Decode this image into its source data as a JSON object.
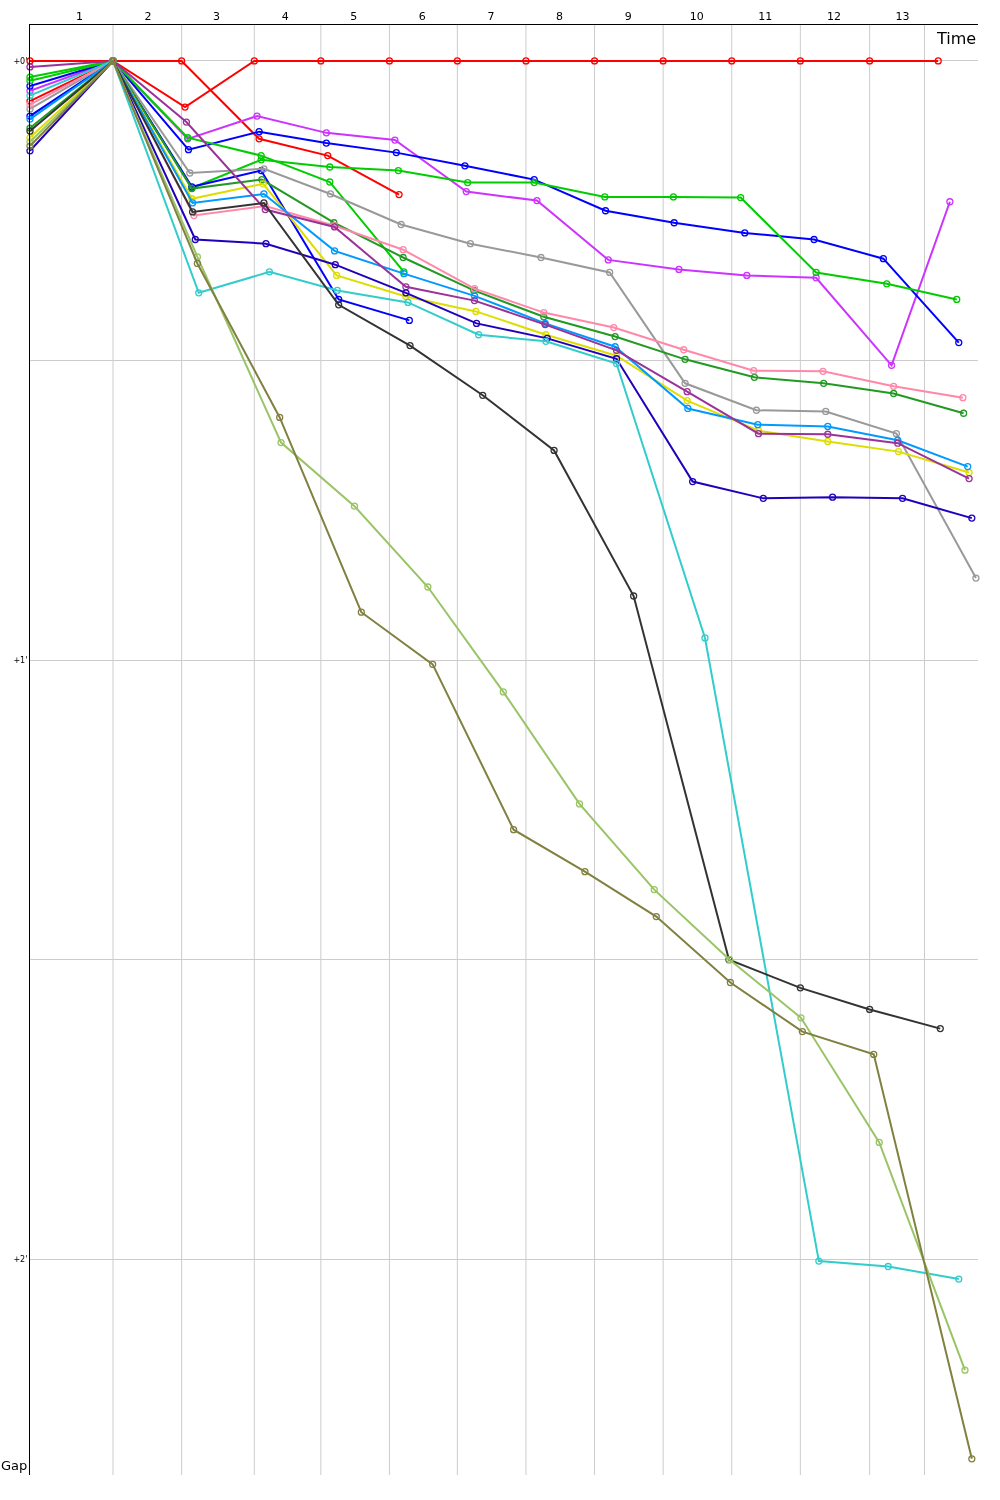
{
  "chart_data": {
    "type": "line",
    "xlabel": "Time",
    "ylabel": "Gap",
    "xlim": [
      0.28,
      14.1
    ],
    "ylim": [
      2.36,
      -0.06
    ],
    "xticks": [
      1,
      {
        "value": 1.49,
        "label": null
      },
      2,
      {
        "value": 2.49,
        "label": null
      },
      3,
      {
        "value": 3.55,
        "label": null
      },
      4,
      {
        "value": 4.52,
        "label": null
      },
      5,
      {
        "value": 5.52,
        "label": null
      },
      6,
      {
        "value": 6.51,
        "label": null
      },
      7,
      {
        "value": 7.51,
        "label": null
      },
      8,
      {
        "value": 8.51,
        "label": null
      },
      9,
      {
        "value": 9.51,
        "label": null
      },
      10,
      {
        "value": 10.51,
        "label": null
      },
      11,
      {
        "value": 11.51,
        "label": null
      },
      12,
      {
        "value": 12.52,
        "label": null
      },
      13,
      {
        "value": 13.32,
        "label": null
      }
    ],
    "yticks": [
      {
        "value": 0,
        "label": "+0'"
      },
      {
        "value": 0.5,
        "label": null
      },
      {
        "value": 1,
        "label": "+1'"
      },
      {
        "value": 1.5,
        "label": null
      },
      {
        "value": 2,
        "label": "+2'"
      }
    ],
    "grid": true,
    "marker": "circle",
    "line_style": "solid",
    "series": [
      {
        "color": "#ff0000",
        "x": [
          0.28,
          1.49,
          2.54,
          3.55,
          4.52,
          5.52,
          6.51,
          7.51,
          8.51,
          9.51,
          10.51,
          11.51,
          12.52,
          13.52
        ],
        "values": [
          0,
          0,
          0.077,
          0,
          0,
          0,
          0,
          0,
          0,
          0,
          0,
          0,
          0,
          0
        ]
      },
      {
        "color": "#ff0000",
        "x": [
          0.28,
          1.49,
          2.49,
          3.62,
          4.62,
          5.66
        ],
        "values": [
          0.067,
          0,
          0,
          0.13,
          0.158,
          0.223
        ]
      },
      {
        "color": "#cc33ff",
        "x": [
          0.28,
          1.49,
          2.58,
          3.59,
          4.6,
          5.6,
          6.64,
          7.67,
          8.71,
          9.74,
          10.73,
          11.74,
          12.84,
          13.69
        ],
        "values": [
          0.05,
          0,
          0.13,
          0.092,
          0.12,
          0.132,
          0.218,
          0.233,
          0.332,
          0.348,
          0.358,
          0.362,
          0.508,
          0.235
        ]
      },
      {
        "color": "#0000ff",
        "x": [
          0.28,
          1.49,
          2.59,
          3.62,
          4.6,
          5.62,
          6.62,
          7.63,
          8.67,
          9.67,
          10.7,
          11.71,
          12.72,
          13.82
        ],
        "values": [
          0.042,
          0,
          0.148,
          0.118,
          0.137,
          0.153,
          0.175,
          0.198,
          0.25,
          0.27,
          0.287,
          0.298,
          0.33,
          0.47
        ]
      },
      {
        "color": "#00cc00",
        "x": [
          0.28,
          1.49,
          2.58,
          3.65,
          4.65,
          5.73
        ],
        "values": [
          0.027,
          0,
          0.128,
          0.158,
          0.202,
          0.352
        ]
      },
      {
        "color": "#00cc00",
        "x": [
          0.28,
          1.49,
          2.64,
          3.65,
          4.65,
          5.65,
          6.66,
          7.63,
          8.66,
          9.66,
          10.64,
          11.74,
          12.77,
          13.79
        ],
        "values": [
          0.033,
          0,
          0.212,
          0.165,
          0.177,
          0.183,
          0.203,
          0.203,
          0.227,
          0.227,
          0.228,
          0.353,
          0.372,
          0.398
        ]
      },
      {
        "color": "#0000ff",
        "x": [
          0.28,
          1.49,
          2.64,
          3.65,
          4.78,
          5.81
        ],
        "values": [
          0.092,
          0,
          0.21,
          0.183,
          0.398,
          0.433
        ]
      },
      {
        "color": "#999999",
        "x": [
          0.28,
          1.49,
          2.61,
          3.69,
          4.66,
          5.69,
          6.7,
          7.73,
          8.73,
          9.83,
          10.87,
          11.88,
          12.91,
          14.07
        ],
        "values": [
          0.08,
          0,
          0.187,
          0.18,
          0.222,
          0.273,
          0.305,
          0.328,
          0.353,
          0.538,
          0.583,
          0.585,
          0.622,
          0.863
        ]
      },
      {
        "color": "#229922",
        "x": [
          0.28,
          1.49,
          2.64,
          3.66,
          4.71,
          5.72,
          6.75,
          7.77,
          8.81,
          9.83,
          10.84,
          11.85,
          12.87,
          13.89
        ],
        "values": [
          0.112,
          0,
          0.213,
          0.198,
          0.27,
          0.328,
          0.383,
          0.427,
          0.46,
          0.498,
          0.528,
          0.538,
          0.555,
          0.588
        ]
      },
      {
        "color": "#ff88aa",
        "x": [
          0.28,
          1.49,
          2.67,
          3.71,
          4.72,
          5.72,
          6.76,
          7.77,
          8.79,
          9.81,
          10.83,
          11.84,
          12.87,
          13.88
        ],
        "values": [
          0.073,
          0,
          0.258,
          0.242,
          0.275,
          0.315,
          0.38,
          0.42,
          0.445,
          0.482,
          0.517,
          0.518,
          0.543,
          0.562
        ]
      },
      {
        "color": "#dddd00",
        "x": [
          0.28,
          1.49,
          2.64,
          3.68,
          4.75,
          5.76,
          6.78,
          7.8,
          8.83,
          9.86,
          10.9,
          11.91,
          12.94,
          13.97
        ],
        "values": [
          0.128,
          0,
          0.23,
          0.205,
          0.358,
          0.393,
          0.418,
          0.457,
          0.492,
          0.567,
          0.617,
          0.635,
          0.652,
          0.687
        ]
      },
      {
        "color": "#0099ff",
        "x": [
          0.28,
          1.49,
          2.65,
          3.69,
          4.72,
          5.73,
          6.76,
          7.79,
          8.81,
          9.87,
          10.89,
          11.91,
          12.93,
          13.95
        ],
        "values": [
          0.097,
          0,
          0.237,
          0.222,
          0.317,
          0.355,
          0.392,
          0.438,
          0.477,
          0.58,
          0.607,
          0.61,
          0.633,
          0.677
        ]
      },
      {
        "color": "#993399",
        "x": [
          0.28,
          1.49,
          2.56,
          3.71,
          4.72,
          5.76,
          6.76,
          7.79,
          8.83,
          9.86,
          10.9,
          11.91,
          12.93,
          13.97
        ],
        "values": [
          0.01,
          0,
          0.102,
          0.248,
          0.277,
          0.377,
          0.4,
          0.44,
          0.483,
          0.552,
          0.622,
          0.623,
          0.638,
          0.697
        ]
      },
      {
        "color": "#2200bb",
        "x": [
          0.28,
          1.49,
          2.69,
          3.72,
          4.73,
          5.76,
          6.79,
          7.82,
          8.83,
          9.94,
          10.97,
          11.98,
          13.0,
          14.01
        ],
        "values": [
          0.15,
          0,
          0.298,
          0.305,
          0.34,
          0.387,
          0.438,
          0.463,
          0.497,
          0.702,
          0.73,
          0.728,
          0.73,
          0.763
        ]
      },
      {
        "color": "#33cccc",
        "x": [
          0.28,
          1.49,
          2.74,
          3.77,
          4.76,
          5.79,
          6.82,
          7.8,
          8.83,
          10.12,
          11.78,
          12.79,
          13.82
        ],
        "values": [
          0.058,
          0,
          0.387,
          0.352,
          0.383,
          0.403,
          0.457,
          0.468,
          0.505,
          0.963,
          2.003,
          2.012,
          2.033
        ]
      },
      {
        "color": "#333333",
        "x": [
          0.28,
          1.49,
          2.65,
          3.69,
          4.78,
          5.82,
          6.88,
          7.92,
          9.08,
          10.47,
          11.51,
          12.52,
          13.55
        ],
        "values": [
          0.117,
          0,
          0.252,
          0.237,
          0.407,
          0.475,
          0.558,
          0.65,
          0.893,
          1.5,
          1.547,
          1.583,
          1.615
        ]
      },
      {
        "color": "#99c466",
        "x": [
          0.28,
          1.49,
          2.72,
          3.94,
          5.01,
          6.08,
          7.18,
          8.29,
          9.38,
          10.48,
          11.52,
          12.66,
          13.91
        ],
        "values": [
          0.135,
          0,
          0.327,
          0.637,
          0.743,
          0.878,
          1.053,
          1.24,
          1.383,
          1.5,
          1.597,
          1.805,
          2.185
        ]
      },
      {
        "color": "#808040",
        "x": [
          0.28,
          1.49,
          2.72,
          3.92,
          5.11,
          6.15,
          7.33,
          8.37,
          9.41,
          10.49,
          11.54,
          12.58,
          14.01
        ],
        "values": [
          0.142,
          0,
          0.338,
          0.595,
          0.92,
          1.007,
          1.283,
          1.353,
          1.428,
          1.538,
          1.62,
          1.658,
          2.333
        ]
      }
    ]
  }
}
